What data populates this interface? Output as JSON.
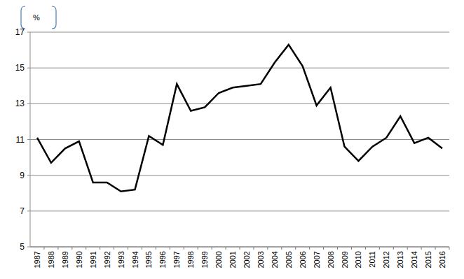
{
  "chart_data": {
    "type": "line",
    "ylabel": "%",
    "categories": [
      "1987",
      "1988",
      "1989",
      "1990",
      "1991",
      "1992",
      "1993",
      "1994",
      "1995",
      "1996",
      "1997",
      "1998",
      "1999",
      "2000",
      "2001",
      "2002",
      "2003",
      "2004",
      "2005",
      "2006",
      "2007",
      "2008",
      "2009",
      "2010",
      "2011",
      "2012",
      "2013",
      "2014",
      "2015",
      "2016"
    ],
    "values": [
      11.1,
      9.7,
      10.5,
      10.9,
      8.6,
      8.6,
      8.1,
      8.2,
      11.2,
      10.7,
      14.1,
      12.6,
      12.8,
      13.6,
      13.9,
      14.0,
      14.1,
      15.3,
      16.3,
      15.1,
      12.9,
      13.9,
      10.6,
      9.8,
      10.6,
      11.1,
      12.3,
      10.8,
      11.1,
      10.5
    ],
    "color": "#000000",
    "ylim": [
      5,
      17
    ],
    "yticks": [
      5,
      7,
      9,
      11,
      13,
      15,
      17
    ],
    "grid": true
  }
}
